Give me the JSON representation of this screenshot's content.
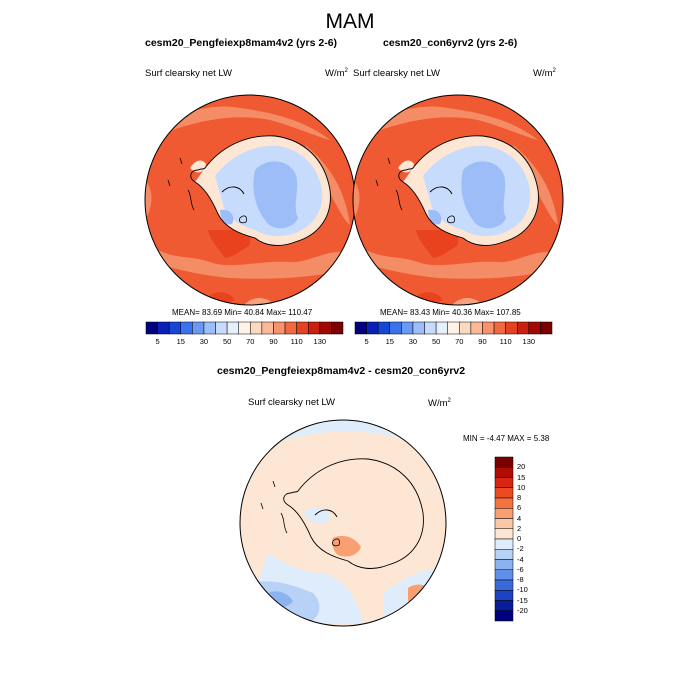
{
  "figure_title": "MAM",
  "panels": [
    {
      "title": "cesm20_Pengfeiexp8mam4v2 (yrs 2-6)",
      "variable": "Surf clearsky net LW",
      "units": "W/m",
      "units_exp": "2",
      "stats": "MEAN=  83.69  Min=  40.84  Max= 110.47"
    },
    {
      "title": "cesm20_con6yrv2 (yrs 2-6)",
      "variable": "Surf clearsky net LW",
      "units": "W/m",
      "units_exp": "2",
      "stats": "MEAN=  83.43  Min=  40.36  Max= 107.85"
    }
  ],
  "diff_panel": {
    "title": "cesm20_Pengfeiexp8mam4v2 - cesm20_con6yrv2",
    "variable": "Surf clearsky net LW",
    "units": "W/m",
    "units_exp": "2",
    "stats": "MIN =  -4.47 MAX =   5.38"
  },
  "main_colorbar": {
    "labels": [
      "5",
      "15",
      "30",
      "50",
      "70",
      "90",
      "110",
      "130"
    ],
    "colors": [
      "#00007f",
      "#0a1fb5",
      "#1546d6",
      "#3b73ec",
      "#6a9af4",
      "#9dbdf9",
      "#c7dbfc",
      "#e6f0fd",
      "#fff1e4",
      "#fdd8c0",
      "#fbb797",
      "#f7926b",
      "#f2683f",
      "#e5421f",
      "#c92010",
      "#a10a04",
      "#7a0000"
    ]
  },
  "diff_colorbar": {
    "labels": [
      "20",
      "15",
      "10",
      "8",
      "6",
      "4",
      "2",
      "0",
      "-2",
      "-4",
      "-6",
      "-8",
      "-10",
      "-15",
      "-20"
    ],
    "colors": [
      "#7a0000",
      "#b00c04",
      "#d92612",
      "#ec4a22",
      "#f5733f",
      "#f9a073",
      "#fcc8a6",
      "#fde6d3",
      "#deecfb",
      "#b7d2f6",
      "#8cb3ef",
      "#5f8fe6",
      "#3a6ad8",
      "#1c43c4",
      "#0a1c99",
      "#00007f"
    ]
  }
}
